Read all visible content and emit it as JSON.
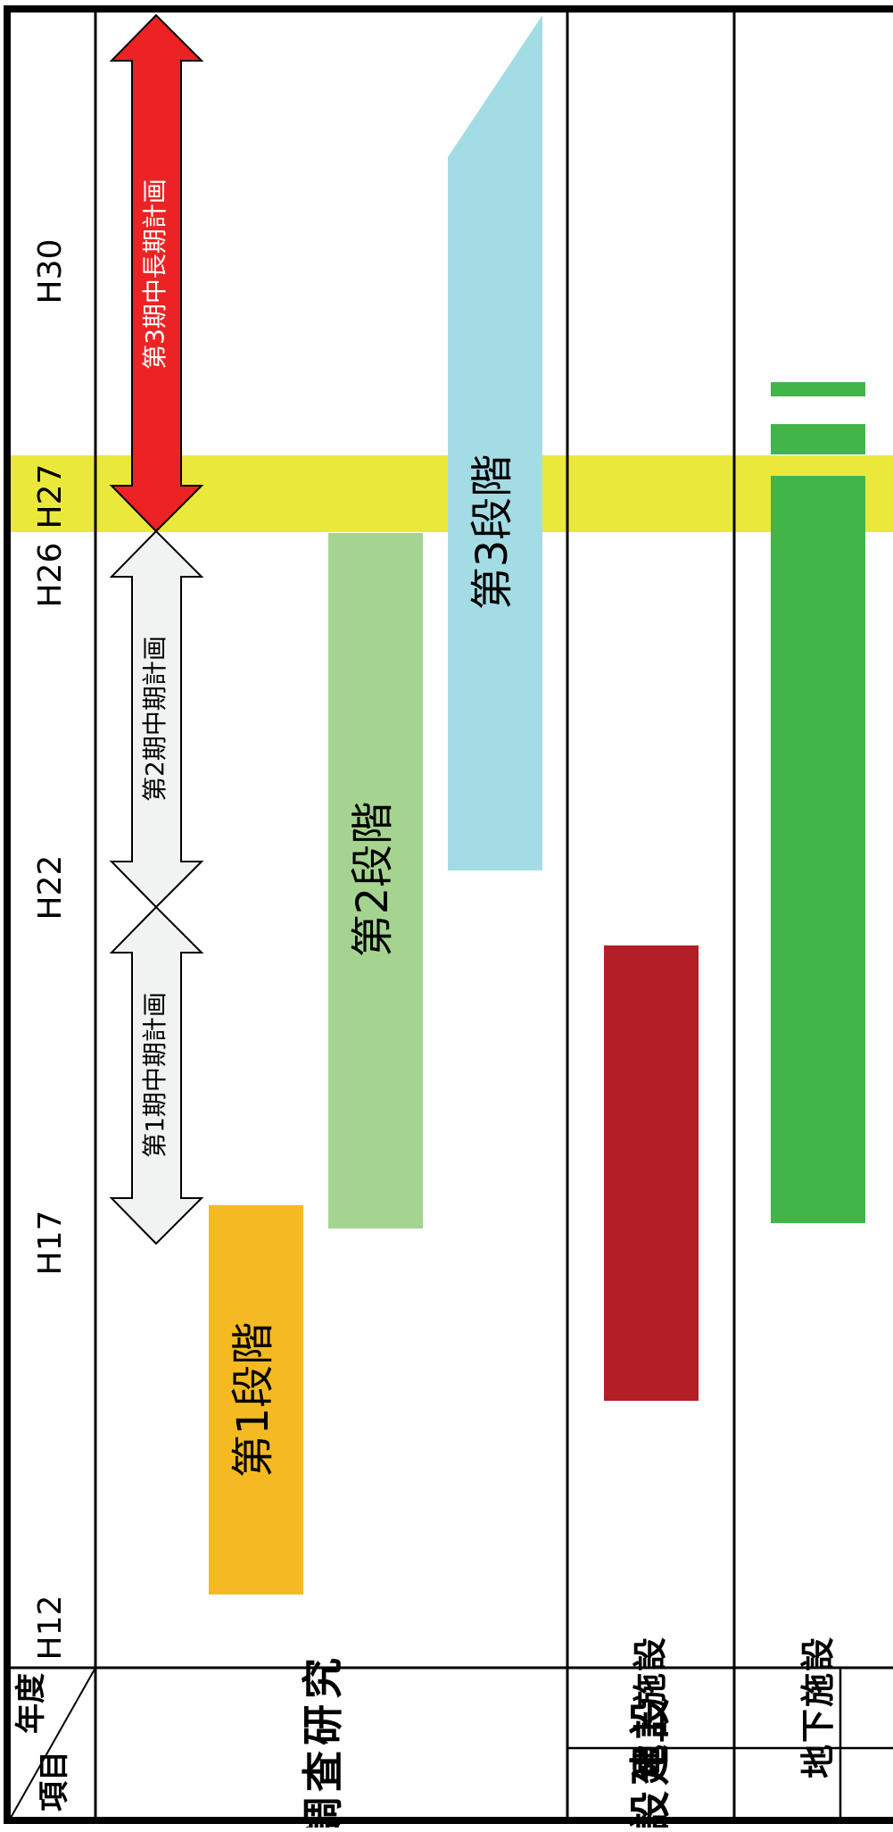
{
  "header": {
    "year_label": "年度",
    "item_label": "項目"
  },
  "years": [
    {
      "label": "H12",
      "value": 12
    },
    {
      "label": "H17",
      "value": 17
    },
    {
      "label": "H22",
      "value": 22
    },
    {
      "label": "H26",
      "value": 26
    },
    {
      "label": "H27",
      "value": 27
    },
    {
      "label": "H30",
      "value": 30
    }
  ],
  "highlight_year": "H27",
  "rows": {
    "research": "調査研究",
    "facilities": "施設建設",
    "surface": "地上施設",
    "underground": "地下施設"
  },
  "plans": [
    {
      "label": "第1期中期計画",
      "from": "H17",
      "to": "H22"
    },
    {
      "label": "第2期中期計画",
      "from": "H22",
      "to": "H26"
    },
    {
      "label": "第3期中長期計画",
      "from": "H26",
      "to": "H30+"
    }
  ],
  "phases": [
    {
      "label": "第1段階",
      "from": "H13",
      "to": "H17"
    },
    {
      "label": "第2段階",
      "from": "H17",
      "to": "H26"
    },
    {
      "label": "第3段階",
      "from": "H22",
      "to": "H30+"
    }
  ],
  "colors": {
    "plan_red": "#ed2224",
    "plan_light": "#f1f2f2",
    "highlight": "#ebe83c",
    "phase1": "#f5ba21",
    "phase2": "#a5d490",
    "phase3": "#a4dce6",
    "surface": "#b31e27",
    "underground": "#42b549"
  }
}
